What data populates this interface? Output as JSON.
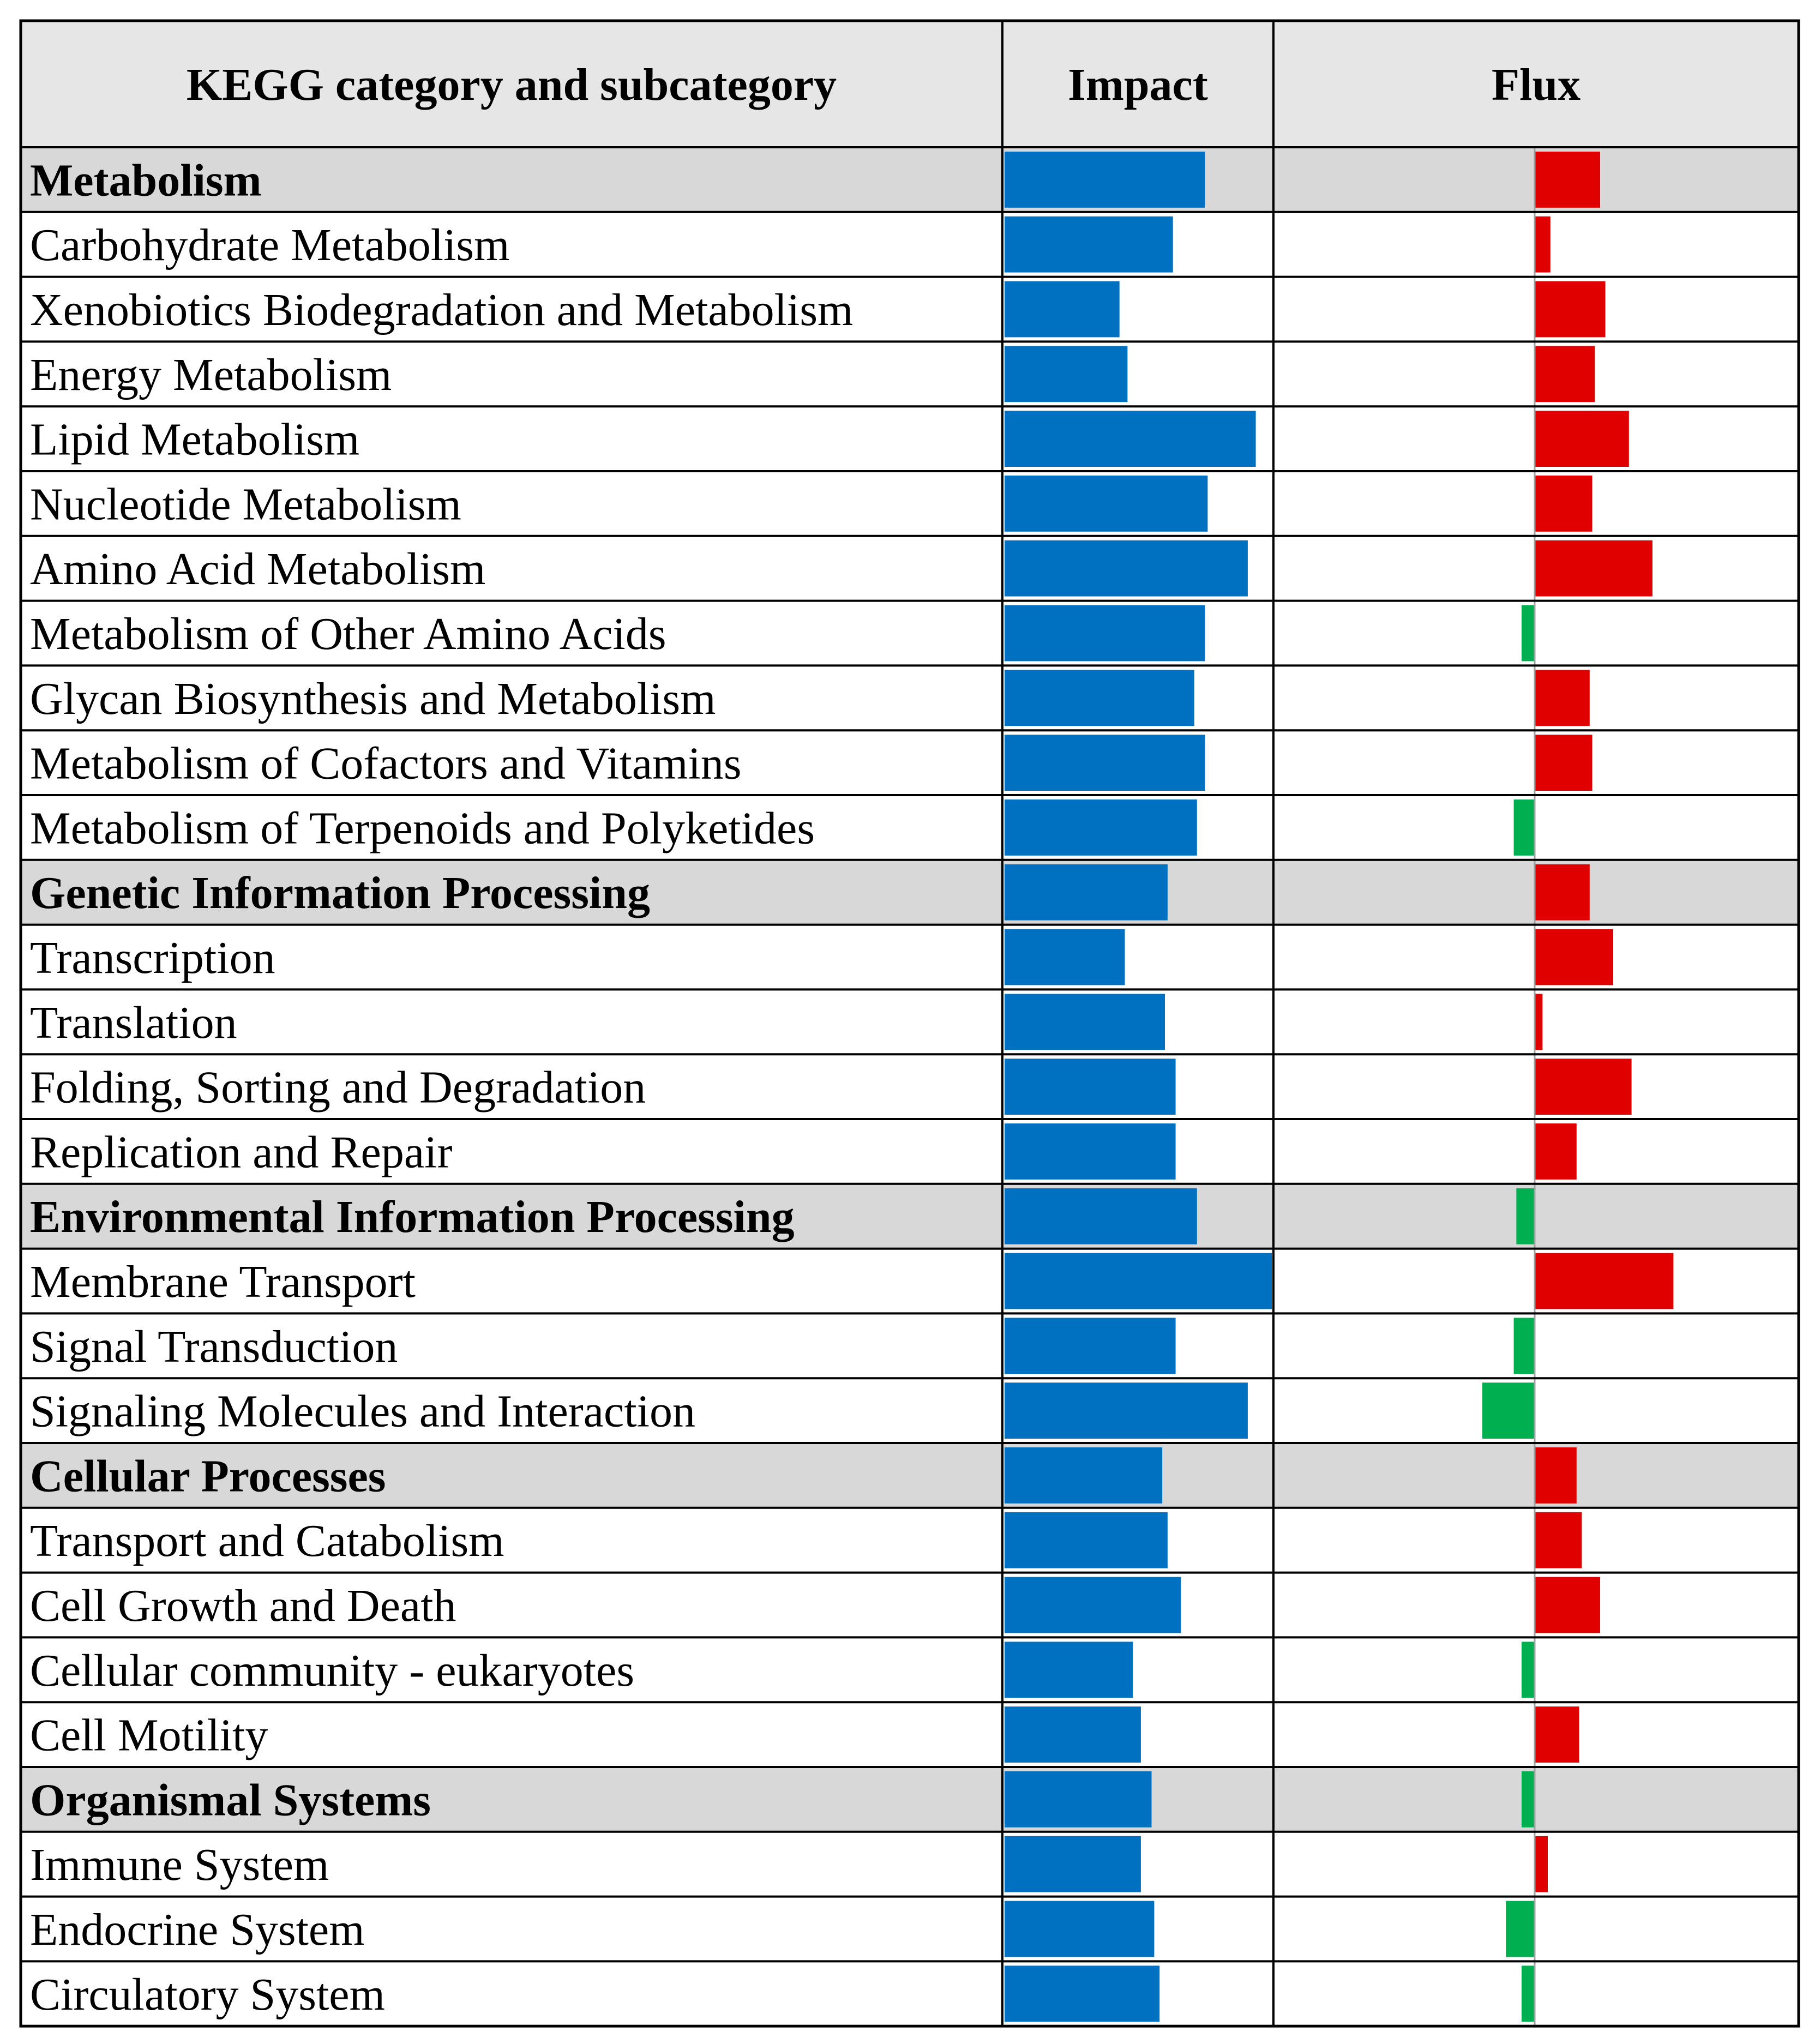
{
  "chart_data": {
    "type": "table",
    "columns": {
      "category": "KEGG category and subcategory",
      "impact": "Impact",
      "flux": "Flux"
    },
    "impact_range": [
      0,
      1
    ],
    "flux_range": [
      -1,
      1
    ],
    "colors": {
      "impact": "#0070c0",
      "flux_positive": "#e00000",
      "flux_negative": "#00b050",
      "header_bg": "#e6e6e6",
      "group_bg": "#d8d8d8",
      "grid": "#000000"
    },
    "rows": [
      {
        "label": "Metabolism",
        "group": true,
        "impact": 0.75,
        "flux": 0.25
      },
      {
        "label": "Carbohydrate Metabolism",
        "group": false,
        "impact": 0.63,
        "flux": 0.06
      },
      {
        "label": "Xenobiotics Biodegradation and Metabolism",
        "group": false,
        "impact": 0.43,
        "flux": 0.27
      },
      {
        "label": "Energy Metabolism",
        "group": false,
        "impact": 0.46,
        "flux": 0.23
      },
      {
        "label": "Lipid Metabolism",
        "group": false,
        "impact": 0.94,
        "flux": 0.36
      },
      {
        "label": "Nucleotide Metabolism",
        "group": false,
        "impact": 0.76,
        "flux": 0.22
      },
      {
        "label": "Amino Acid Metabolism",
        "group": false,
        "impact": 0.91,
        "flux": 0.45
      },
      {
        "label": "Metabolism of Other Amino Acids",
        "group": false,
        "impact": 0.75,
        "flux": -0.05
      },
      {
        "label": "Glycan Biosynthesis and Metabolism",
        "group": false,
        "impact": 0.71,
        "flux": 0.21
      },
      {
        "label": "Metabolism of Cofactors and Vitamins",
        "group": false,
        "impact": 0.75,
        "flux": 0.22
      },
      {
        "label": "Metabolism of Terpenoids and Polyketides",
        "group": false,
        "impact": 0.72,
        "flux": -0.08
      },
      {
        "label": "Genetic Information Processing",
        "group": true,
        "impact": 0.61,
        "flux": 0.21
      },
      {
        "label": "Transcription",
        "group": false,
        "impact": 0.45,
        "flux": 0.3
      },
      {
        "label": "Translation",
        "group": false,
        "impact": 0.6,
        "flux": 0.03
      },
      {
        "label": "Folding, Sorting and Degradation",
        "group": false,
        "impact": 0.64,
        "flux": 0.37
      },
      {
        "label": "Replication and Repair",
        "group": false,
        "impact": 0.64,
        "flux": 0.16
      },
      {
        "label": "Environmental Information Processing",
        "group": true,
        "impact": 0.72,
        "flux": -0.07
      },
      {
        "label": "Membrane Transport",
        "group": false,
        "impact": 1.0,
        "flux": 0.53
      },
      {
        "label": "Signal Transduction",
        "group": false,
        "impact": 0.64,
        "flux": -0.08
      },
      {
        "label": "Signaling Molecules and Interaction",
        "group": false,
        "impact": 0.91,
        "flux": -0.2
      },
      {
        "label": "Cellular Processes",
        "group": true,
        "impact": 0.59,
        "flux": 0.16
      },
      {
        "label": "Transport and Catabolism",
        "group": false,
        "impact": 0.61,
        "flux": 0.18
      },
      {
        "label": "Cell Growth and Death",
        "group": false,
        "impact": 0.66,
        "flux": 0.25
      },
      {
        "label": "Cellular community - eukaryotes",
        "group": false,
        "impact": 0.48,
        "flux": -0.05
      },
      {
        "label": "Cell Motility",
        "group": false,
        "impact": 0.51,
        "flux": 0.17
      },
      {
        "label": "Organismal Systems",
        "group": true,
        "impact": 0.55,
        "flux": -0.05
      },
      {
        "label": "Immune System",
        "group": false,
        "impact": 0.51,
        "flux": 0.05
      },
      {
        "label": "Endocrine System",
        "group": false,
        "impact": 0.56,
        "flux": -0.11
      },
      {
        "label": "Circulatory System",
        "group": false,
        "impact": 0.58,
        "flux": -0.05
      }
    ]
  }
}
